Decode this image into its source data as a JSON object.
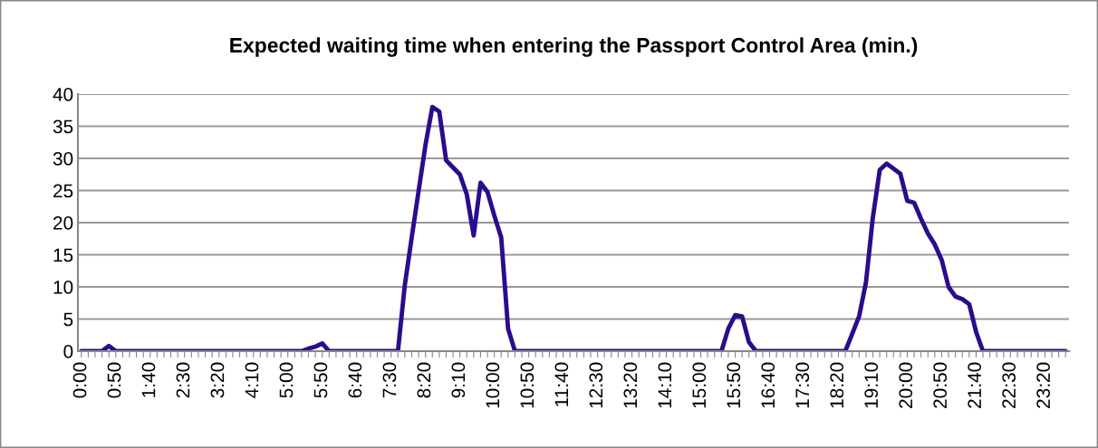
{
  "chart_data": {
    "type": "line",
    "title": "Expected waiting time when entering the Passport Control Area (min.)",
    "categories": [
      "0:00",
      null,
      null,
      null,
      null,
      "0:50",
      null,
      null,
      null,
      null,
      "1:40",
      null,
      null,
      null,
      null,
      "2:30",
      null,
      null,
      null,
      null,
      "3:20",
      null,
      null,
      null,
      null,
      "4:10",
      null,
      null,
      null,
      null,
      "5:00",
      null,
      null,
      null,
      null,
      "5:50",
      null,
      null,
      null,
      null,
      "6:40",
      null,
      null,
      null,
      null,
      "7:30",
      null,
      null,
      null,
      null,
      "8:20",
      null,
      null,
      null,
      null,
      "9:10",
      null,
      null,
      null,
      null,
      "10:00",
      null,
      null,
      null,
      null,
      "10:50",
      null,
      null,
      null,
      null,
      "11:40",
      null,
      null,
      null,
      null,
      "12:30",
      null,
      null,
      null,
      null,
      "13:20",
      null,
      null,
      null,
      null,
      "14:10",
      null,
      null,
      null,
      null,
      "15:00",
      null,
      null,
      null,
      null,
      "15:50",
      null,
      null,
      null,
      null,
      "16:40",
      null,
      null,
      null,
      null,
      "17:30",
      null,
      null,
      null,
      null,
      "18:20",
      null,
      null,
      null,
      null,
      "19:10",
      null,
      null,
      null,
      null,
      "20:00",
      null,
      null,
      null,
      null,
      "20:50",
      null,
      null,
      null,
      null,
      "21:40",
      null,
      null,
      null,
      null,
      "22:30",
      null,
      null,
      null,
      null,
      "23:20",
      null,
      null,
      null
    ],
    "series": [
      {
        "color": "#2a0c8c",
        "values": [
          0,
          0,
          0,
          0,
          0.8,
          0,
          0,
          0,
          0,
          0,
          0,
          0,
          0,
          0,
          0,
          0,
          0,
          0,
          0,
          0,
          0,
          0,
          0,
          0,
          0,
          0,
          0,
          0,
          0,
          0,
          0,
          0,
          0,
          0.4,
          0.7,
          1.2,
          0,
          0,
          0,
          0,
          0,
          0,
          0,
          0,
          0,
          0,
          0,
          10.3,
          17.7,
          24.9,
          32.1,
          38,
          37.3,
          29.7,
          28.6,
          27.5,
          24.4,
          18,
          26.2,
          24.8,
          21.1,
          17.7,
          3.5,
          0,
          0,
          0,
          0,
          0,
          0,
          0,
          0,
          0,
          0,
          0,
          0,
          0,
          0,
          0,
          0,
          0,
          0,
          0,
          0,
          0,
          0,
          0,
          0,
          0,
          0,
          0,
          0,
          0,
          0,
          0,
          3.5,
          5.6,
          5.4,
          1.4,
          0,
          0,
          0,
          0,
          0,
          0,
          0,
          0,
          0,
          0,
          0,
          0,
          0,
          0,
          2.7,
          5.4,
          10.7,
          20.8,
          28.2,
          29.2,
          28.4,
          27.6,
          23.4,
          23.1,
          20.6,
          18.3,
          16.6,
          14.2,
          10,
          8.5,
          8.1,
          7.3,
          3,
          0,
          0,
          0,
          0,
          0,
          0,
          0,
          0,
          0,
          0,
          0,
          0,
          0
        ]
      }
    ],
    "ylim": [
      0,
      40
    ],
    "yticks": [
      0,
      5,
      10,
      15,
      20,
      25,
      30,
      35,
      40
    ],
    "grid": "y",
    "legend": false,
    "marker": "none",
    "line_style": "solid"
  }
}
